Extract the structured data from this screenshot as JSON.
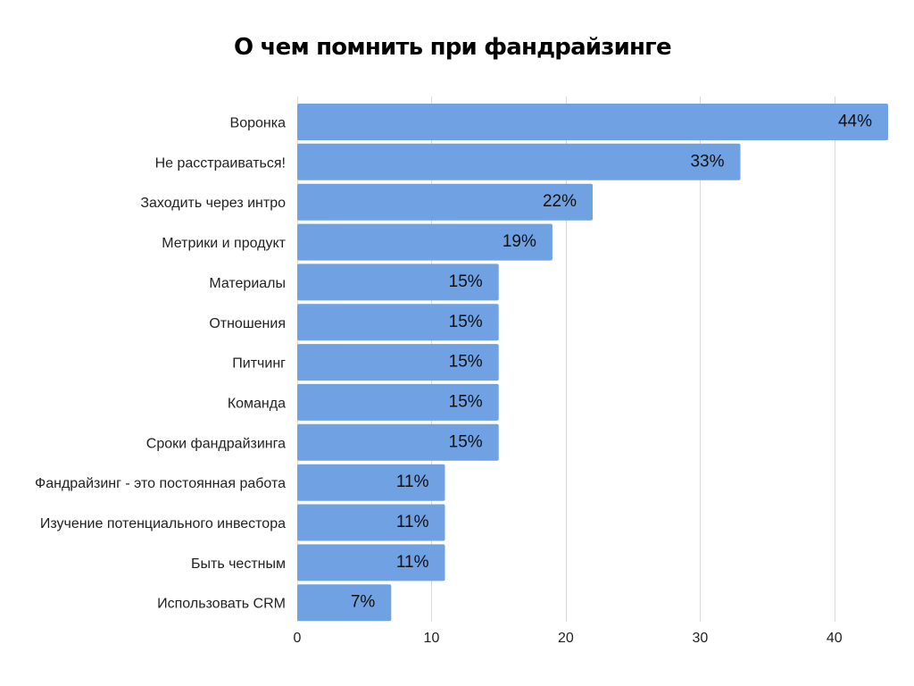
{
  "chart_data": {
    "type": "bar",
    "orientation": "horizontal",
    "title": "О чем помнить при фандрайзинге",
    "categories": [
      "Воронка",
      "Не расстраиваться!",
      "Заходить через интро",
      "Метрики и продукт",
      "Материалы",
      "Отношения",
      "Питчинг",
      "Команда",
      "Сроки фандрайзинга",
      "Фандрайзинг - это постоянная работа",
      "Изучение потенциального инвестора",
      "Быть честным",
      "Использовать CRM"
    ],
    "values": [
      44,
      33,
      22,
      19,
      15,
      15,
      15,
      15,
      15,
      11,
      11,
      11,
      7
    ],
    "value_labels": [
      "44%",
      "33%",
      "22%",
      "19%",
      "15%",
      "15%",
      "15%",
      "15%",
      "15%",
      "11%",
      "11%",
      "11%",
      "7%"
    ],
    "xlim": [
      0,
      44
    ],
    "xticks": [
      0,
      10,
      20,
      30,
      40
    ],
    "xtick_labels": [
      "0",
      "10",
      "20",
      "30",
      "40"
    ],
    "grid": "vertical",
    "legend": "none",
    "colors": {
      "bar": "#6fa1e3",
      "grid": "#d9d9d9"
    }
  }
}
